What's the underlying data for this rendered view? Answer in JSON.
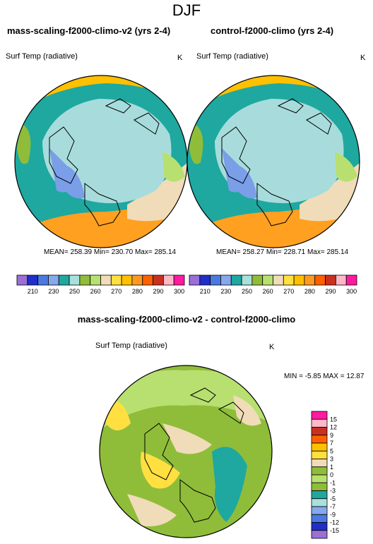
{
  "page_title": "DJF",
  "panels": [
    {
      "title": "mass-scaling-f2000-climo-v2 (yrs 2-4)",
      "variable": "Surf Temp (radiative)",
      "units": "K",
      "stats": "MEAN= 258.39  Min= 230.70  Max= 285.14"
    },
    {
      "title": "control-f2000-climo (yrs 2-4)",
      "variable": "Surf Temp (radiative)",
      "units": "K",
      "stats": "MEAN= 258.27  Min= 228.71  Max= 285.14"
    }
  ],
  "abs_colorbar": {
    "labels": [
      "210",
      "230",
      "250",
      "260",
      "270",
      "280",
      "290",
      "300"
    ],
    "colors": [
      "#9a6fd6",
      "#1f2fc8",
      "#4a7ae0",
      "#86a8ec",
      "#1ea8a0",
      "#a8e0dc",
      "#8fbd3a",
      "#b8e070",
      "#f0dcb8",
      "#ffe040",
      "#ffc000",
      "#ff9a20",
      "#ff6000",
      "#c83020",
      "#ffb8c8",
      "#ff1aa0"
    ]
  },
  "diff_panel": {
    "title": "mass-scaling-f2000-climo-v2 - control-f2000-climo",
    "variable": "Surf Temp (radiative)",
    "units": "K",
    "minmax": "MIN =  -5.85 MAX =  12.87"
  },
  "diff_colorbar": {
    "labels": [
      "15",
      "12",
      "9",
      "7",
      "5",
      "3",
      "1",
      "0",
      "-1",
      "-3",
      "-5",
      "-7",
      "-9",
      "-12",
      "-15"
    ],
    "colors": [
      "#ff1aa0",
      "#ffb8c8",
      "#c83020",
      "#ff6000",
      "#ffc000",
      "#ffe040",
      "#f0dcb8",
      "#8fbd3a",
      "#b8e070",
      "#8fbd3a",
      "#1ea8a0",
      "#a8e0dc",
      "#86a8ec",
      "#4a7ae0",
      "#1f2fc8",
      "#9a6fd6"
    ]
  },
  "map_colors": {
    "teal": "#1ea8a0",
    "ice": "#a8dcdc",
    "ice_blue": "#7a9ee8",
    "green": "#8fbd3a",
    "light_green": "#b8e070",
    "tan": "#f0dcb8",
    "yellow": "#ffe040",
    "orange": "#ffc000",
    "dark_orange": "#ffa020"
  }
}
